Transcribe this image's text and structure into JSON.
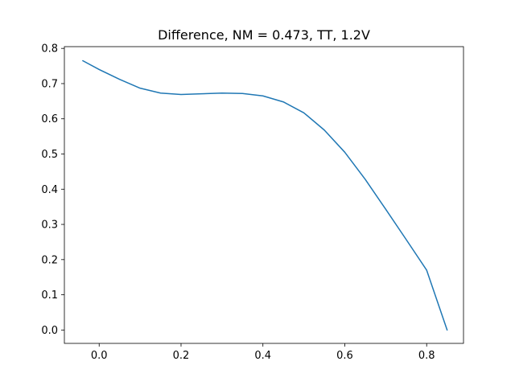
{
  "chart_data": {
    "type": "line",
    "title": "Difference, NM = 0.473, TT, 1.2V",
    "xlabel": "",
    "ylabel": "",
    "xlim": [
      -0.085,
      0.89
    ],
    "ylim": [
      -0.038,
      0.805
    ],
    "xticks": [
      0.0,
      0.2,
      0.4,
      0.6,
      0.8
    ],
    "xtick_labels": [
      "0.0",
      "0.2",
      "0.4",
      "0.6",
      "0.8"
    ],
    "yticks": [
      0.0,
      0.1,
      0.2,
      0.3,
      0.4,
      0.5,
      0.6,
      0.7,
      0.8
    ],
    "ytick_labels": [
      "0.0",
      "0.1",
      "0.2",
      "0.3",
      "0.4",
      "0.5",
      "0.6",
      "0.7",
      "0.8"
    ],
    "grid": false,
    "line_color": "#1f77b4",
    "series": [
      {
        "x": [
          -0.04,
          0.0,
          0.05,
          0.1,
          0.15,
          0.2,
          0.25,
          0.3,
          0.35,
          0.4,
          0.45,
          0.5,
          0.55,
          0.6,
          0.65,
          0.7,
          0.75,
          0.8,
          0.85
        ],
        "y": [
          0.765,
          0.74,
          0.712,
          0.687,
          0.673,
          0.669,
          0.671,
          0.673,
          0.672,
          0.665,
          0.648,
          0.617,
          0.568,
          0.505,
          0.428,
          0.343,
          0.257,
          0.17,
          0.0
        ]
      }
    ]
  }
}
